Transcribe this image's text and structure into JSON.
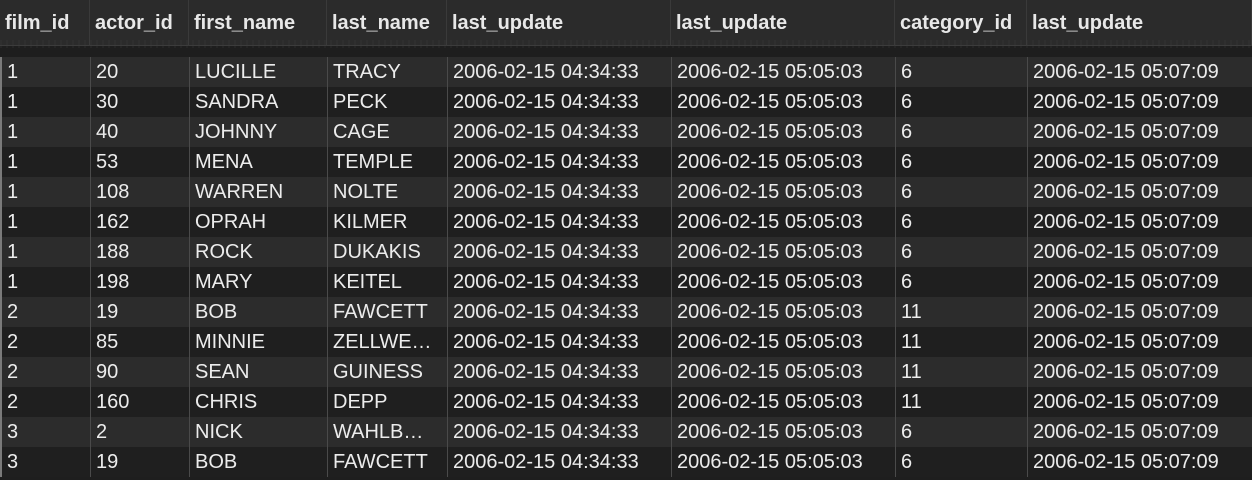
{
  "columns": [
    "film_id",
    "actor_id",
    "first_name",
    "last_name",
    "last_update",
    "last_update",
    "category_id",
    "last_update"
  ],
  "rows": [
    [
      "1",
      "20",
      "LUCILLE",
      "TRACY",
      "2006-02-15 04:34:33",
      "2006-02-15 05:05:03",
      "6",
      "2006-02-15 05:07:09"
    ],
    [
      "1",
      "30",
      "SANDRA",
      "PECK",
      "2006-02-15 04:34:33",
      "2006-02-15 05:05:03",
      "6",
      "2006-02-15 05:07:09"
    ],
    [
      "1",
      "40",
      "JOHNNY",
      "CAGE",
      "2006-02-15 04:34:33",
      "2006-02-15 05:05:03",
      "6",
      "2006-02-15 05:07:09"
    ],
    [
      "1",
      "53",
      "MENA",
      "TEMPLE",
      "2006-02-15 04:34:33",
      "2006-02-15 05:05:03",
      "6",
      "2006-02-15 05:07:09"
    ],
    [
      "1",
      "108",
      "WARREN",
      "NOLTE",
      "2006-02-15 04:34:33",
      "2006-02-15 05:05:03",
      "6",
      "2006-02-15 05:07:09"
    ],
    [
      "1",
      "162",
      "OPRAH",
      "KILMER",
      "2006-02-15 04:34:33",
      "2006-02-15 05:05:03",
      "6",
      "2006-02-15 05:07:09"
    ],
    [
      "1",
      "188",
      "ROCK",
      "DUKAKIS",
      "2006-02-15 04:34:33",
      "2006-02-15 05:05:03",
      "6",
      "2006-02-15 05:07:09"
    ],
    [
      "1",
      "198",
      "MARY",
      "KEITEL",
      "2006-02-15 04:34:33",
      "2006-02-15 05:05:03",
      "6",
      "2006-02-15 05:07:09"
    ],
    [
      "2",
      "19",
      "BOB",
      "FAWCETT",
      "2006-02-15 04:34:33",
      "2006-02-15 05:05:03",
      "11",
      "2006-02-15 05:07:09"
    ],
    [
      "2",
      "85",
      "MINNIE",
      "ZELLWE…",
      "2006-02-15 04:34:33",
      "2006-02-15 05:05:03",
      "11",
      "2006-02-15 05:07:09"
    ],
    [
      "2",
      "90",
      "SEAN",
      "GUINESS",
      "2006-02-15 04:34:33",
      "2006-02-15 05:05:03",
      "11",
      "2006-02-15 05:07:09"
    ],
    [
      "2",
      "160",
      "CHRIS",
      "DEPP",
      "2006-02-15 04:34:33",
      "2006-02-15 05:05:03",
      "11",
      "2006-02-15 05:07:09"
    ],
    [
      "3",
      "2",
      "NICK",
      "WAHLB…",
      "2006-02-15 04:34:33",
      "2006-02-15 05:05:03",
      "6",
      "2006-02-15 05:07:09"
    ],
    [
      "3",
      "19",
      "BOB",
      "FAWCETT",
      "2006-02-15 04:34:33",
      "2006-02-15 05:05:03",
      "6",
      "2006-02-15 05:07:09"
    ]
  ],
  "colors": {
    "background": "#1e1e1e",
    "header_bg": "#2b2b2b",
    "row_odd": "#2c2c2c",
    "row_even": "#1f1f1f",
    "text": "#ececec"
  }
}
